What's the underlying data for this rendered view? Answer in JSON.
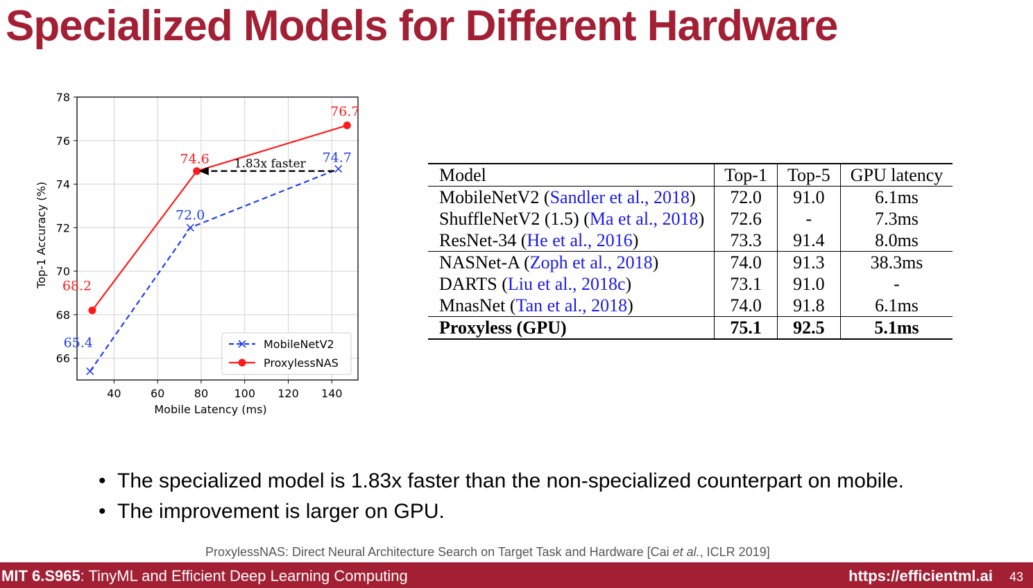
{
  "slide": {
    "title": "Specialized Models for Different Hardware",
    "bullets": [
      "The specialized model is 1.83x faster than the non-specialized counterpart on mobile.",
      "The improvement is larger on GPU."
    ],
    "reference": {
      "text_before": "ProxylessNAS: Direct Neural Architecture Search on Target Task and Hardware [Cai ",
      "italic": "et al.",
      "text_after": ", ICLR 2019]"
    },
    "footer": {
      "course_code": "MIT 6.S965",
      "course_name": ": TinyML and Efficient Deep Learning Computing",
      "url": "https://efficientml.ai",
      "page": "43"
    }
  },
  "chart_data": {
    "type": "line",
    "xlabel": "Mobile Latency (ms)",
    "ylabel": "Top-1 Accuracy (%)",
    "xlim": [
      23,
      152
    ],
    "ylim": [
      65,
      78
    ],
    "xticks": [
      40,
      60,
      80,
      100,
      120,
      140
    ],
    "yticks": [
      66,
      68,
      70,
      72,
      74,
      76,
      78
    ],
    "grid": true,
    "legend_position": "bottom-right",
    "series": [
      {
        "name": "MobileNetV2",
        "color": "#1f3df0",
        "marker": "x",
        "linestyle": "dashed",
        "x": [
          29,
          75,
          143
        ],
        "y": [
          65.4,
          72.0,
          74.7
        ],
        "labels": [
          "65.4",
          "72.0",
          "74.7"
        ]
      },
      {
        "name": "ProxylessNAS",
        "color": "#ff1a1a",
        "marker": "o",
        "linestyle": "solid",
        "x": [
          30,
          78,
          147
        ],
        "y": [
          68.2,
          74.6,
          76.7
        ],
        "labels": [
          "68.2",
          "74.6",
          "76.7"
        ]
      }
    ],
    "annotation": {
      "text": "1.83x faster",
      "from": [
        141,
        74.6
      ],
      "to": [
        79,
        74.6
      ]
    }
  },
  "table": {
    "headers": [
      "Model",
      "Top-1",
      "Top-5",
      "GPU latency"
    ],
    "groups": [
      [
        {
          "model": "MobileNetV2",
          "cite": "Sandler et al., 2018",
          "top1": "72.0",
          "top5": "91.0",
          "latency": "6.1ms"
        },
        {
          "model": "ShuffleNetV2 (1.5)",
          "cite": "Ma et al., 2018",
          "top1": "72.6",
          "top5": "-",
          "latency": "7.3ms"
        },
        {
          "model": "ResNet-34",
          "cite": "He et al., 2016",
          "top1": "73.3",
          "top5": "91.4",
          "latency": "8.0ms"
        }
      ],
      [
        {
          "model": "NASNet-A",
          "cite": "Zoph et al., 2018",
          "top1": "74.0",
          "top5": "91.3",
          "latency": "38.3ms"
        },
        {
          "model": "DARTS",
          "cite": "Liu et al., 2018c",
          "top1": "73.1",
          "top5": "91.0",
          "latency": "-"
        },
        {
          "model": "MnasNet",
          "cite": "Tan et al., 2018",
          "top1": "74.0",
          "top5": "91.8",
          "latency": "6.1ms"
        }
      ],
      [
        {
          "model": "Proxyless (GPU)",
          "cite": "",
          "top1": "75.1",
          "top5": "92.5",
          "latency": "5.1ms",
          "bold": true
        }
      ]
    ]
  }
}
